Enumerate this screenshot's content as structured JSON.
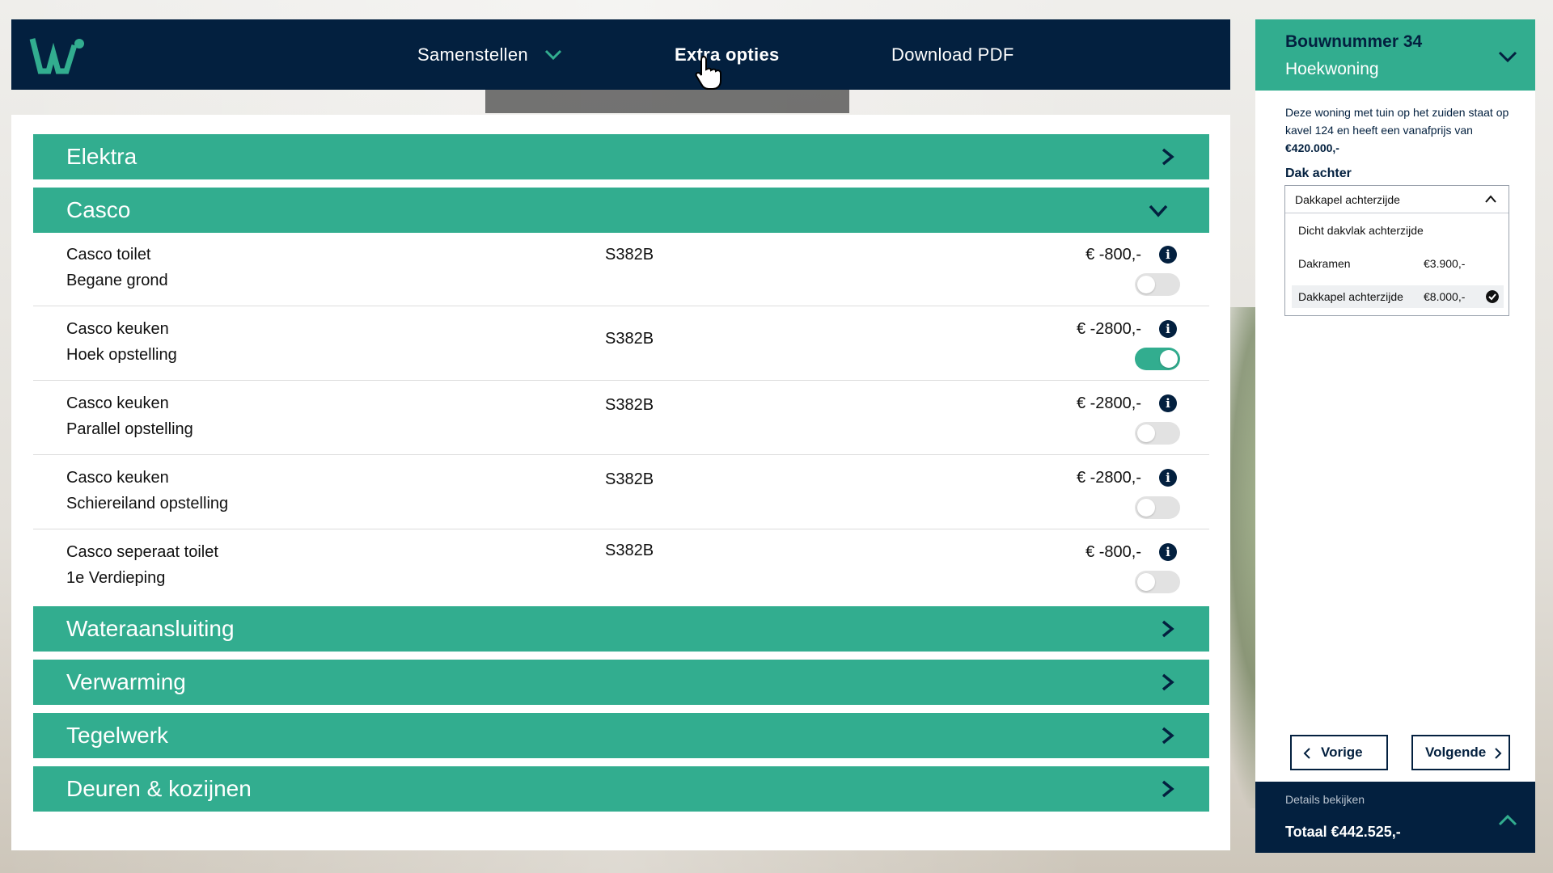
{
  "nav": {
    "items": [
      {
        "label": "Samenstellen"
      },
      {
        "label": "Extra opties"
      },
      {
        "label": "Download PDF"
      }
    ]
  },
  "sections": {
    "elektra": "Elektra",
    "casco": "Casco",
    "wateraansluiting": "Wateraansluiting",
    "verwarming": "Verwarming",
    "tegelwerk": "Tegelwerk",
    "deuren": "Deuren & kozijnen"
  },
  "casco_rows": [
    {
      "title": "Casco toilet",
      "sub": "Begane grond",
      "code": "S382B",
      "price": "€ -800,-",
      "enabled": false
    },
    {
      "title": "Casco keuken",
      "sub": "Hoek opstelling",
      "code": "S382B",
      "price": "€ -2800,-",
      "enabled": true
    },
    {
      "title": "Casco keuken",
      "sub": "Parallel opstelling",
      "code": "S382B",
      "price": "€ -2800,-",
      "enabled": false
    },
    {
      "title": "Casco keuken",
      "sub": "Schiereiland opstelling",
      "code": "S382B",
      "price": "€ -2800,-",
      "enabled": false
    },
    {
      "title": "Casco seperaat toilet",
      "sub": "1e Verdieping",
      "code": "S382B",
      "price": "€ -800,-",
      "enabled": false
    }
  ],
  "side": {
    "title": "Bouwnummer 34",
    "subtitle": "Hoekwoning",
    "desc_text": "Deze woning met tuin op het zuiden staat op kavel 124 en heeft een vanafprijs van ",
    "desc_price": "€420.000,-",
    "dak_label": "Dak achter",
    "dropdown": {
      "selected": "Dakkapel achterzijde",
      "options": [
        {
          "label": "Dicht dakvlak achterzijde",
          "price": ""
        },
        {
          "label": "Dakramen",
          "price": "€3.900,-"
        },
        {
          "label": "Dakkapel achterzijde",
          "price": "€8.000,-"
        }
      ]
    },
    "prev_label": "Vorige",
    "next_label": "Volgende",
    "details_label": "Details bekijken",
    "total_label": "Totaal €442.525,-"
  },
  "colors": {
    "navy": "#03203f",
    "green": "#32ad8f"
  }
}
